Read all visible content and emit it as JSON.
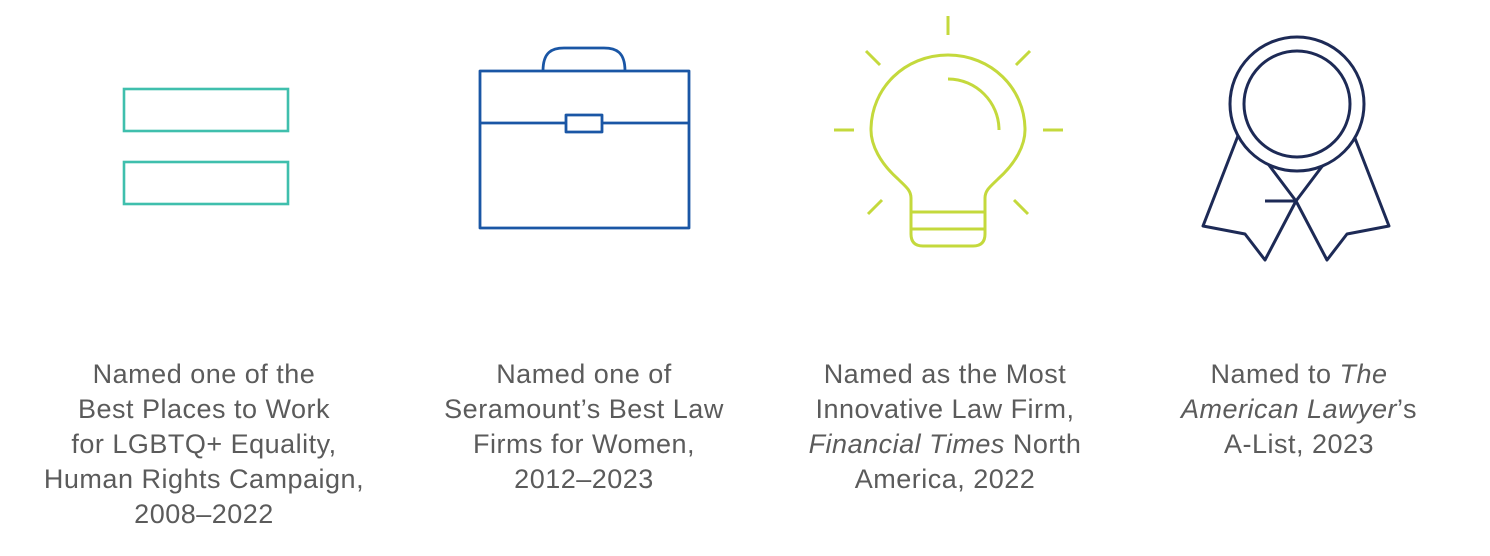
{
  "colors": {
    "equality": "#3fbfad",
    "briefcase": "#1a56a5",
    "lightbulb": "#c4d93c",
    "ribbon": "#1d2a56",
    "text": "#5b5b5b"
  },
  "awards": [
    {
      "icon": "equality-icon",
      "lines": [
        [
          "Named one of the"
        ],
        [
          "Best Places to Work"
        ],
        [
          "for LGBTQ+ Equality,"
        ],
        [
          "Human Rights Campaign,"
        ],
        [
          "2008–2022"
        ]
      ]
    },
    {
      "icon": "briefcase-icon",
      "lines": [
        [
          "Named one of"
        ],
        [
          "Seramount’s Best Law"
        ],
        [
          "Firms for Women,"
        ],
        [
          "2012–2023"
        ]
      ]
    },
    {
      "icon": "lightbulb-icon",
      "lines": [
        [
          "Named as the Most"
        ],
        [
          "Innovative Law Firm,"
        ],
        [
          "Financial Times",
          " North"
        ],
        [
          "America, 2022"
        ]
      ]
    },
    {
      "icon": "award-ribbon-icon",
      "lines": [
        [
          "Named to ",
          "The"
        ],
        [
          "American Lawyer",
          "’s"
        ],
        [
          "A-List, 2023"
        ]
      ]
    }
  ]
}
